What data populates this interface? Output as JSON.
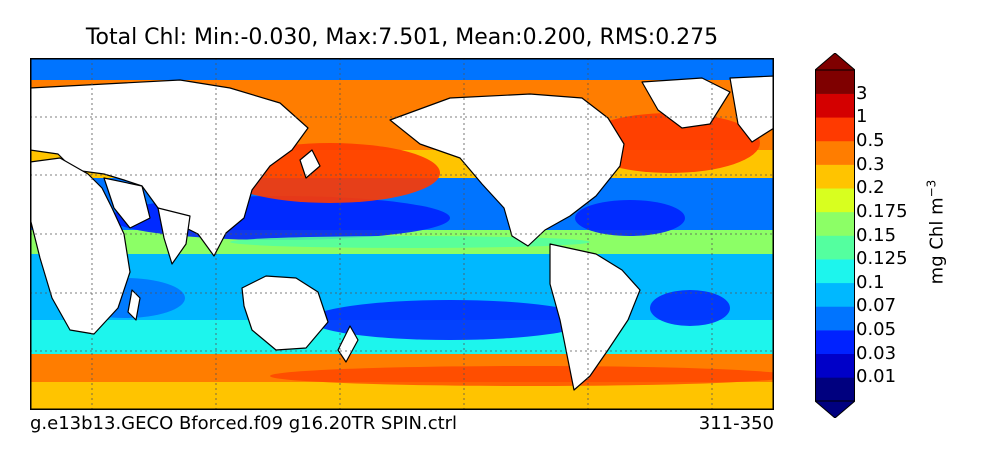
{
  "chart_data": {
    "type": "heatmap",
    "title": "Total Chl: Min:-0.030, Max:7.501, Mean:0.200, RMS:0.275",
    "stats": {
      "min": -0.03,
      "max": 7.501,
      "mean": 0.2,
      "rms": 0.275
    },
    "map_projection": "global lon-lat, Pacific-centred, dotted graticule",
    "grid": true,
    "colorbar": {
      "placement": "right",
      "label": "mg Chl m",
      "label_exponent": "−3",
      "extend": "both",
      "levels": [
        "0.01",
        "0.03",
        "0.05",
        "0.07",
        "0.1",
        "0.125",
        "0.15",
        "0.175",
        "0.2",
        "0.3",
        "0.5",
        "1",
        "3"
      ],
      "colors": [
        "#00007f",
        "#0000c8",
        "#0022ff",
        "#0074ff",
        "#00b8ff",
        "#1df5ed",
        "#54ff9f",
        "#8cff66",
        "#d8ff1f",
        "#ffc400",
        "#ff7d00",
        "#ff3a00",
        "#d40000",
        "#7f0000"
      ]
    },
    "footer_left": "g.e13b13.GECO Bforced.f09 g16.20TR SPIN.ctrl",
    "footer_right": "311-350"
  }
}
